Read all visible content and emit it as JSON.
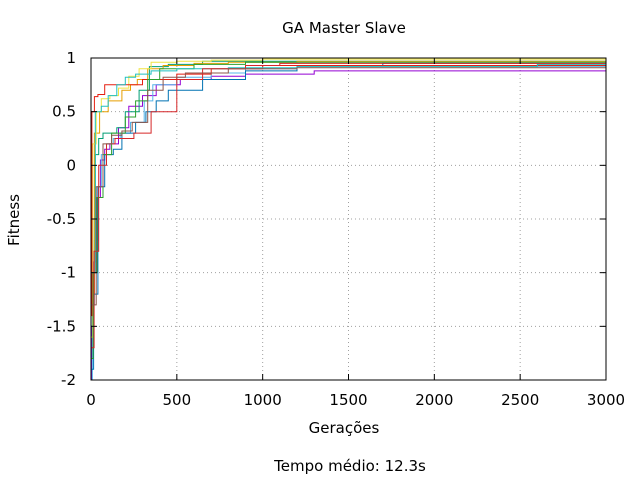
{
  "chart_data": {
    "type": "line",
    "title": "GA Master Slave",
    "xlabel": "Gerações",
    "ylabel": "Fitness",
    "caption": "Tempo médio: 12.3s",
    "xlim": [
      0,
      3000
    ],
    "ylim": [
      -2,
      1
    ],
    "xticks": [
      0,
      500,
      1000,
      1500,
      2000,
      2500,
      3000
    ],
    "yticks": [
      -2,
      -1.5,
      -1,
      -0.5,
      0,
      0.5,
      1
    ],
    "xtick_labels": [
      "0",
      "500",
      "1000",
      "1500",
      "2000",
      "2500",
      "3000"
    ],
    "ytick_labels": [
      "-2",
      "-1.5",
      "-1",
      "-0.5",
      "0",
      "0.5",
      "1"
    ],
    "grid": true,
    "legend": "none",
    "series": [
      {
        "color": "#9400d3",
        "x": [
          0,
          5,
          15,
          30,
          55,
          80,
          110,
          160,
          220,
          300,
          380,
          520,
          700,
          900,
          1300,
          3000
        ],
        "y": [
          -2,
          -1.5,
          -0.9,
          -0.3,
          0.05,
          0.15,
          0.2,
          0.35,
          0.55,
          0.65,
          0.75,
          0.8,
          0.83,
          0.85,
          0.88,
          0.88
        ]
      },
      {
        "color": "#009e73",
        "x": [
          0,
          10,
          25,
          45,
          70,
          100,
          150,
          200,
          280,
          340,
          450,
          650,
          1000,
          3000
        ],
        "y": [
          -1.5,
          -0.5,
          0.1,
          0.25,
          0.3,
          0.3,
          0.35,
          0.5,
          0.7,
          0.92,
          0.94,
          0.97,
          0.97,
          0.97
        ]
      },
      {
        "color": "#56b4e9",
        "x": [
          0,
          8,
          20,
          40,
          60,
          90,
          130,
          170,
          230,
          310,
          360,
          500,
          700,
          900,
          1200,
          3000
        ],
        "y": [
          -2,
          -1.3,
          -0.7,
          -0.2,
          0.1,
          0.2,
          0.25,
          0.3,
          0.4,
          0.6,
          0.75,
          0.82,
          0.86,
          0.9,
          0.92,
          0.92
        ]
      },
      {
        "color": "#e69f00",
        "x": [
          0,
          20,
          50,
          100,
          180,
          230,
          270,
          330,
          420,
          600,
          800,
          1200,
          3000
        ],
        "y": [
          -1.2,
          0.3,
          0.5,
          0.6,
          0.7,
          0.75,
          0.8,
          0.9,
          0.93,
          0.95,
          0.96,
          0.97,
          0.97
        ]
      },
      {
        "color": "#f0e442",
        "x": [
          0,
          10,
          30,
          60,
          110,
          160,
          220,
          280,
          350,
          500,
          700,
          1000,
          3000
        ],
        "y": [
          -1.6,
          0.2,
          0.5,
          0.62,
          0.65,
          0.72,
          0.83,
          0.9,
          0.96,
          0.97,
          0.98,
          0.99,
          0.99
        ]
      },
      {
        "color": "#0072b2",
        "x": [
          0,
          15,
          40,
          80,
          130,
          180,
          260,
          320,
          380,
          450,
          650,
          900,
          1200,
          1700,
          3000
        ],
        "y": [
          -1.9,
          -1.2,
          -0.2,
          0.1,
          0.15,
          0.3,
          0.4,
          0.5,
          0.6,
          0.7,
          0.8,
          0.88,
          0.93,
          0.95,
          0.95
        ]
      },
      {
        "color": "#e51e10",
        "x": [
          0,
          5,
          20,
          40,
          80,
          150,
          300,
          500,
          700,
          1000,
          3000
        ],
        "y": [
          -1.4,
          0.5,
          0.64,
          0.66,
          0.75,
          0.75,
          0.8,
          0.85,
          0.9,
          0.93,
          0.96
        ]
      },
      {
        "color": "#2ca02c",
        "x": [
          0,
          12,
          35,
          70,
          120,
          200,
          260,
          330,
          400,
          600,
          900,
          3000
        ],
        "y": [
          -1.8,
          -1.0,
          -0.3,
          0.1,
          0.3,
          0.45,
          0.6,
          0.8,
          0.9,
          0.94,
          0.96,
          0.96
        ]
      },
      {
        "color": "#20c0c0",
        "x": [
          0,
          25,
          60,
          100,
          150,
          200,
          260,
          350,
          500,
          800,
          1200,
          1700,
          2600,
          3000
        ],
        "y": [
          -1.0,
          0.5,
          0.55,
          0.65,
          0.75,
          0.82,
          0.85,
          0.88,
          0.9,
          0.91,
          0.92,
          0.92,
          0.94,
          0.94
        ]
      },
      {
        "color": "#d62728",
        "x": [
          0,
          18,
          45,
          90,
          140,
          250,
          350,
          500,
          650,
          900,
          1100,
          3000
        ],
        "y": [
          -1.7,
          -0.8,
          0.0,
          0.2,
          0.25,
          0.3,
          0.5,
          0.8,
          0.9,
          0.93,
          0.95,
          0.95
        ]
      },
      {
        "color": "#8c564b",
        "x": [
          0,
          30,
          70,
          120,
          180,
          240,
          330,
          420,
          550,
          800,
          1200,
          3000
        ],
        "y": [
          -1.3,
          -0.2,
          0.2,
          0.28,
          0.32,
          0.4,
          0.7,
          0.82,
          0.86,
          0.9,
          0.91,
          0.91
        ]
      }
    ]
  }
}
